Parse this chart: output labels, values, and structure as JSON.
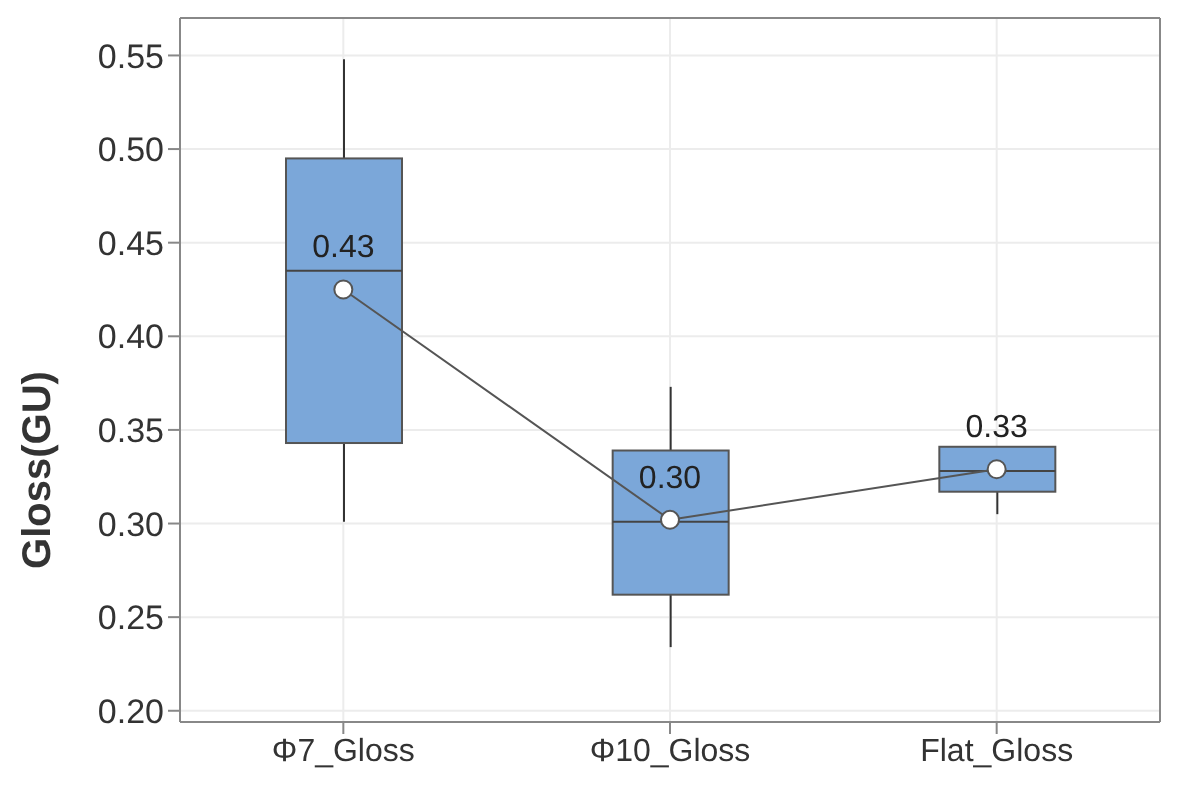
{
  "chart_data": {
    "type": "box",
    "ylabel": "Gloss(GU)",
    "categories": [
      "Φ7_Gloss",
      "Φ10_Gloss",
      "Flat_Gloss"
    ],
    "color": "#7ba7d9",
    "boxes": [
      {
        "low": 0.301,
        "q1": 0.343,
        "median": 0.435,
        "q3": 0.495,
        "high": 0.548
      },
      {
        "low": 0.234,
        "q1": 0.262,
        "median": 0.301,
        "q3": 0.339,
        "high": 0.373
      },
      {
        "low": 0.305,
        "q1": 0.317,
        "median": 0.328,
        "q3": 0.341,
        "high": 0.341
      }
    ],
    "series": [
      {
        "type": "line",
        "color": "#555555",
        "values": [
          0.425,
          0.302,
          0.329
        ],
        "value_labels": [
          "0.43",
          "0.30",
          "0.33"
        ]
      }
    ],
    "ylim": [
      0.194,
      0.57
    ],
    "yticks": [
      {
        "value": 0.2,
        "label": "0.20"
      },
      0.25,
      {
        "value": 0.3,
        "label": "0.30"
      },
      0.35,
      {
        "value": 0.4,
        "label": "0.40"
      },
      0.45,
      {
        "value": 0.5,
        "label": "0.50"
      },
      0.55
    ],
    "grid": true,
    "marker": "circle"
  }
}
